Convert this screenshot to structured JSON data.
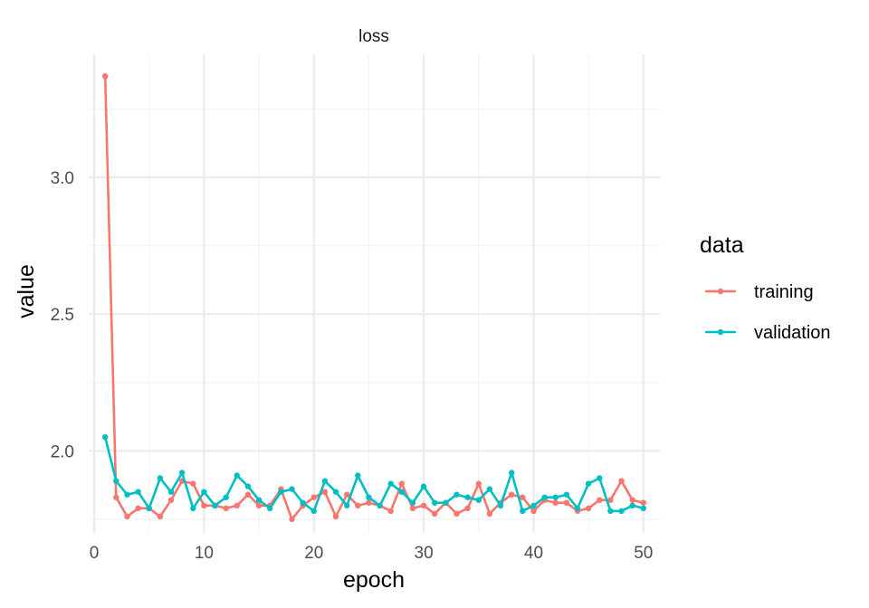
{
  "chart_data": {
    "type": "line",
    "title": "loss",
    "xlabel": "epoch",
    "ylabel": "value",
    "xlim": [
      -0.5,
      51.5
    ],
    "ylim": [
      1.7,
      3.45
    ],
    "x_ticks": [
      0,
      10,
      20,
      30,
      40,
      50
    ],
    "y_ticks": [
      2.0,
      2.5,
      3.0
    ],
    "x_tick_labels": [
      "0",
      "10",
      "20",
      "30",
      "40",
      "50"
    ],
    "y_tick_labels": [
      "2.0",
      "2.5",
      "3.0"
    ],
    "grid": true,
    "legend": {
      "title": "data",
      "position": "right"
    },
    "x": [
      1,
      2,
      3,
      4,
      5,
      6,
      7,
      8,
      9,
      10,
      11,
      12,
      13,
      14,
      15,
      16,
      17,
      18,
      19,
      20,
      21,
      22,
      23,
      24,
      25,
      26,
      27,
      28,
      29,
      30,
      31,
      32,
      33,
      34,
      35,
      36,
      37,
      38,
      39,
      40,
      41,
      42,
      43,
      44,
      45,
      46,
      47,
      48,
      49,
      50
    ],
    "series": [
      {
        "name": "training",
        "color": "#F8766D",
        "values": [
          3.37,
          1.83,
          1.76,
          1.79,
          1.79,
          1.76,
          1.82,
          1.89,
          1.88,
          1.8,
          1.8,
          1.79,
          1.8,
          1.84,
          1.8,
          1.8,
          1.86,
          1.75,
          1.8,
          1.83,
          1.85,
          1.76,
          1.84,
          1.8,
          1.81,
          1.8,
          1.78,
          1.88,
          1.79,
          1.8,
          1.77,
          1.81,
          1.77,
          1.79,
          1.88,
          1.77,
          1.81,
          1.84,
          1.83,
          1.78,
          1.82,
          1.81,
          1.81,
          1.78,
          1.79,
          1.82,
          1.82,
          1.89,
          1.82,
          1.81
        ]
      },
      {
        "name": "validation",
        "color": "#00BFC4",
        "values": [
          2.05,
          1.89,
          1.84,
          1.85,
          1.79,
          1.9,
          1.85,
          1.92,
          1.79,
          1.85,
          1.8,
          1.83,
          1.91,
          1.87,
          1.82,
          1.79,
          1.85,
          1.86,
          1.81,
          1.78,
          1.89,
          1.85,
          1.8,
          1.91,
          1.83,
          1.8,
          1.88,
          1.85,
          1.81,
          1.87,
          1.81,
          1.81,
          1.84,
          1.83,
          1.82,
          1.86,
          1.8,
          1.92,
          1.78,
          1.8,
          1.83,
          1.83,
          1.84,
          1.79,
          1.88,
          1.9,
          1.78,
          1.78,
          1.8,
          1.79
        ]
      }
    ]
  }
}
